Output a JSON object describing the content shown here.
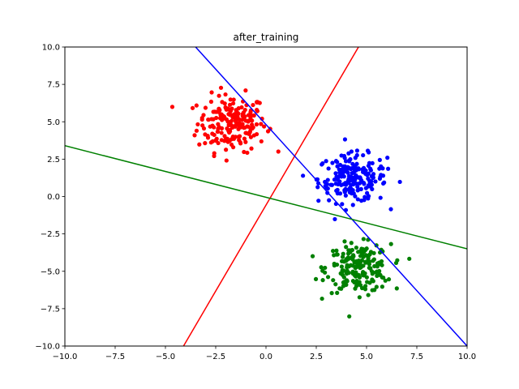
{
  "chart_data": {
    "type": "scatter",
    "title": "after_training",
    "xlabel": "",
    "ylabel": "",
    "xlim": [
      -10,
      10
    ],
    "ylim": [
      -10,
      10
    ],
    "grid": false,
    "x_ticks": [
      -10,
      -7.5,
      -5,
      -2.5,
      0,
      2.5,
      5,
      7.5,
      10
    ],
    "y_ticks": [
      -10,
      -7.5,
      -5,
      -2.5,
      0,
      2.5,
      5,
      7.5,
      10
    ],
    "x_tick_labels": [
      "−10.0",
      "−7.5",
      "−5.0",
      "−2.5",
      "0.0",
      "2.5",
      "5.0",
      "7.5",
      "10.0"
    ],
    "y_tick_labels": [
      "−10.0",
      "−7.5",
      "−5.0",
      "−2.5",
      "0.0",
      "2.5",
      "5.0",
      "7.5",
      "10.0"
    ],
    "clusters": [
      {
        "color": "#ff0000",
        "center": [
          -1.7,
          4.9
        ],
        "spread": [
          0.85,
          0.95
        ],
        "count": 200
      },
      {
        "color": "#0000ff",
        "center": [
          4.3,
          1.2
        ],
        "spread": [
          0.85,
          0.8
        ],
        "count": 200
      },
      {
        "color": "#008000",
        "center": [
          4.6,
          -4.8
        ],
        "spread": [
          0.8,
          0.8
        ],
        "count": 200
      }
    ],
    "lines": [
      {
        "color": "#ff0000",
        "points": [
          [
            -4.1,
            -10
          ],
          [
            4.6,
            10
          ]
        ]
      },
      {
        "color": "#0000ff",
        "points": [
          [
            -3.5,
            10
          ],
          [
            10,
            -10
          ]
        ]
      },
      {
        "color": "#008000",
        "points": [
          [
            -10,
            3.4
          ],
          [
            10,
            -3.5
          ]
        ]
      }
    ]
  }
}
